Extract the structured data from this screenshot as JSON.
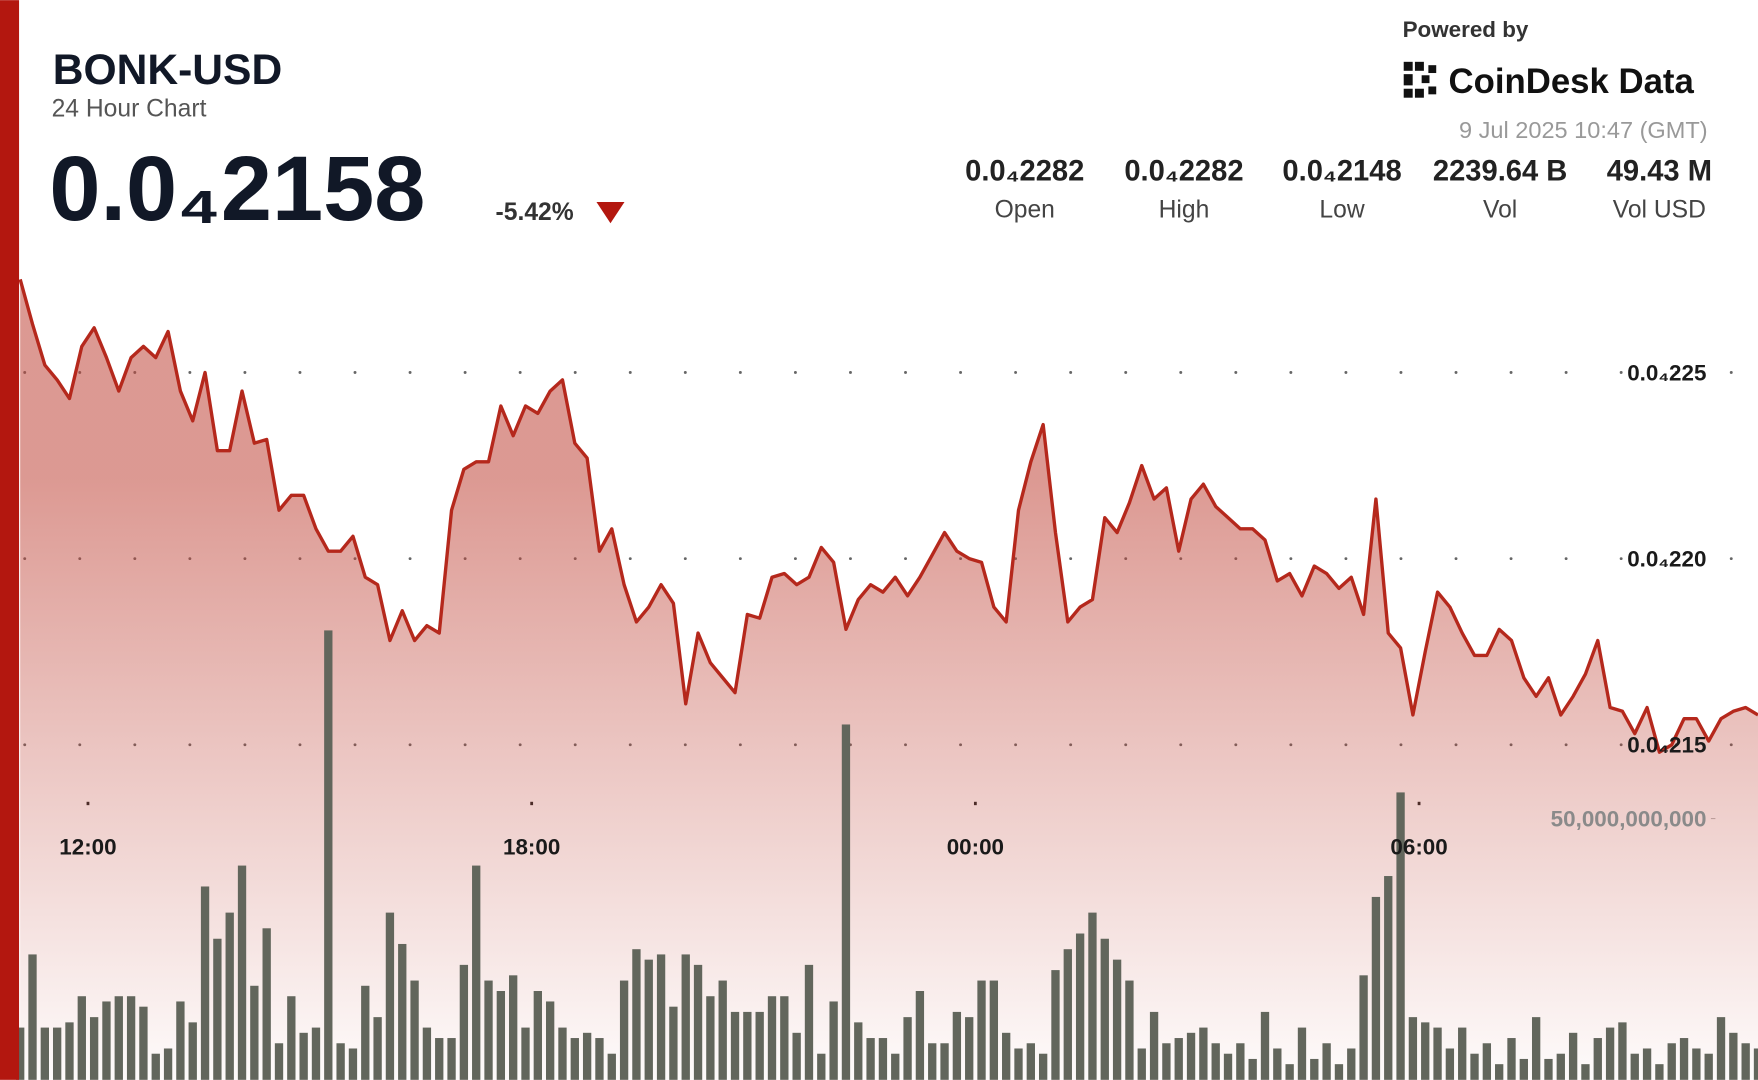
{
  "header": {
    "symbol": "BONK-USD",
    "subtitle": "24 Hour Chart",
    "price": "0.0₄2158",
    "change": "-5.42%",
    "stats": [
      {
        "value": "0.0₄2282",
        "label": "Open"
      },
      {
        "value": "0.0₄2282",
        "label": "High"
      },
      {
        "value": "0.0₄2148",
        "label": "Low"
      },
      {
        "value": "2239.64 B",
        "label": "Vol"
      },
      {
        "value": "49.43 M",
        "label": "Vol USD"
      }
    ],
    "powered_by": "Powered by",
    "brand": "CoinDesk Data",
    "timestamp": "9 Jul 2025 10:47 (GMT)"
  },
  "chart_data": {
    "type": "line",
    "x": [
      665,
      675,
      685,
      695,
      705,
      715,
      725,
      735,
      745,
      755,
      765,
      775,
      785,
      795,
      805,
      815,
      825,
      835,
      845,
      855,
      865,
      875,
      885,
      895,
      905,
      915,
      925,
      935,
      945,
      955,
      965,
      975,
      985,
      995,
      1005,
      1015,
      1025,
      1035,
      1045,
      1055,
      1065,
      1075,
      1085,
      1095,
      1105,
      1115,
      1125,
      1135,
      1145,
      1155,
      1165,
      1175,
      1185,
      1195,
      1205,
      1215,
      1225,
      1235,
      1245,
      1255,
      1265,
      1275,
      1285,
      1295,
      1305,
      1315,
      1325,
      1335,
      1345,
      1355,
      1365,
      1375,
      1385,
      1395,
      1405,
      1415,
      1425,
      1435,
      1445,
      1455,
      1465,
      1475,
      1485,
      1495,
      1505,
      1515,
      1525,
      1535,
      1545,
      1555,
      1565,
      1575,
      1585,
      1595,
      1605,
      1615,
      1625,
      1635,
      1645,
      1655,
      1665,
      1675,
      1685,
      1695,
      1705,
      1715,
      1725,
      1735,
      1745,
      1755,
      1765,
      1775,
      1785,
      1795,
      1805,
      1815,
      1825,
      1835,
      1845,
      1855,
      1865,
      1875,
      1885,
      1895,
      1905,
      1915,
      1925,
      1935,
      1945,
      1955,
      1965,
      1975,
      1985,
      1995,
      2005,
      2015,
      2025,
      2035,
      2045,
      2055,
      2065,
      2075
    ],
    "xlim": [
      665,
      2075
    ],
    "xticks": [
      {
        "value": 720,
        "label": "12:00"
      },
      {
        "value": 1080,
        "label": "18:00"
      },
      {
        "value": 1440,
        "label": "00:00"
      },
      {
        "value": 1800,
        "label": "06:00"
      }
    ],
    "ylim": [
      2.06e-05,
      2.35e-05
    ],
    "yticks": [
      {
        "value": 2.15e-05,
        "label": "0.0₄215"
      },
      {
        "value": 2.2e-05,
        "label": "0.0₄220"
      },
      {
        "value": 2.25e-05,
        "label": "0.0₄225"
      }
    ],
    "y2lim": [
      0,
      206600000000
    ],
    "y2ticks": [
      {
        "value": 50000000000,
        "label": "50,000,000,000"
      }
    ],
    "grid": true,
    "series": [
      {
        "type": "area",
        "color": "#b5281c",
        "values": [
          2.275e-05,
          2.263e-05,
          2.252e-05,
          2.248e-05,
          2.243e-05,
          2.257e-05,
          2.262e-05,
          2.254e-05,
          2.245e-05,
          2.254e-05,
          2.257e-05,
          2.254e-05,
          2.261e-05,
          2.245e-05,
          2.237e-05,
          2.25e-05,
          2.229e-05,
          2.229e-05,
          2.245e-05,
          2.231e-05,
          2.232e-05,
          2.213e-05,
          2.217e-05,
          2.217e-05,
          2.208e-05,
          2.202e-05,
          2.202e-05,
          2.206e-05,
          2.195e-05,
          2.193e-05,
          2.178e-05,
          2.186e-05,
          2.178e-05,
          2.182e-05,
          2.18e-05,
          2.213e-05,
          2.224e-05,
          2.226e-05,
          2.226e-05,
          2.241e-05,
          2.233e-05,
          2.241e-05,
          2.239e-05,
          2.245e-05,
          2.248e-05,
          2.231e-05,
          2.227e-05,
          2.202e-05,
          2.208e-05,
          2.193e-05,
          2.183e-05,
          2.187e-05,
          2.193e-05,
          2.188e-05,
          2.161e-05,
          2.18e-05,
          2.172e-05,
          2.168e-05,
          2.164e-05,
          2.185e-05,
          2.184e-05,
          2.195e-05,
          2.196e-05,
          2.193e-05,
          2.195e-05,
          2.203e-05,
          2.199e-05,
          2.181e-05,
          2.189e-05,
          2.193e-05,
          2.191e-05,
          2.195e-05,
          2.19e-05,
          2.195e-05,
          2.201e-05,
          2.207e-05,
          2.202e-05,
          2.2e-05,
          2.199e-05,
          2.187e-05,
          2.183e-05,
          2.213e-05,
          2.226e-05,
          2.236e-05,
          2.207e-05,
          2.183e-05,
          2.187e-05,
          2.189e-05,
          2.211e-05,
          2.207e-05,
          2.215e-05,
          2.225e-05,
          2.216e-05,
          2.219e-05,
          2.202e-05,
          2.216e-05,
          2.22e-05,
          2.214e-05,
          2.211e-05,
          2.208e-05,
          2.208e-05,
          2.205e-05,
          2.194e-05,
          2.196e-05,
          2.19e-05,
          2.198e-05,
          2.196e-05,
          2.192e-05,
          2.195e-05,
          2.185e-05,
          2.216e-05,
          2.18e-05,
          2.176e-05,
          2.158e-05,
          2.175e-05,
          2.191e-05,
          2.187e-05,
          2.18e-05,
          2.174e-05,
          2.174e-05,
          2.181e-05,
          2.178e-05,
          2.168e-05,
          2.163e-05,
          2.168e-05,
          2.158e-05,
          2.163e-05,
          2.169e-05,
          2.178e-05,
          2.16e-05,
          2.159e-05,
          2.153e-05,
          2.16e-05,
          2.148e-05,
          2.15e-05,
          2.157e-05,
          2.157e-05,
          2.151e-05,
          2.157e-05,
          2.159e-05,
          2.16e-05,
          2.158e-05
        ]
      },
      {
        "type": "bar",
        "axis": "y2",
        "color": "#62665c",
        "values": [
          10000000000,
          24000000000,
          10000000000,
          10000000000,
          11000000000,
          16000000000,
          12000000000,
          15000000000,
          16000000000,
          16000000000,
          14000000000,
          5000000000,
          6000000000,
          15000000000,
          11000000000,
          37000000000,
          27000000000,
          32000000000,
          41000000000,
          18000000000,
          29000000000,
          7000000000,
          16000000000,
          9000000000,
          10000000000,
          86000000000,
          7000000000,
          6000000000,
          18000000000,
          12000000000,
          32000000000,
          26000000000,
          19000000000,
          10000000000,
          8000000000,
          8000000000,
          22000000000,
          41000000000,
          19000000000,
          17000000000,
          20000000000,
          10000000000,
          17000000000,
          15000000000,
          10000000000,
          8000000000,
          9000000000,
          8000000000,
          5000000000,
          19000000000,
          25000000000,
          23000000000,
          24000000000,
          14000000000,
          24000000000,
          22000000000,
          16000000000,
          19000000000,
          13000000000,
          13000000000,
          13000000000,
          16000000000,
          16000000000,
          9000000000,
          22000000000,
          5000000000,
          15000000000,
          68000000000,
          11000000000,
          8000000000,
          8000000000,
          5000000000,
          12000000000,
          17000000000,
          7000000000,
          7000000000,
          13000000000,
          12000000000,
          19000000000,
          19000000000,
          9000000000,
          6000000000,
          7000000000,
          5000000000,
          21000000000,
          25000000000,
          28000000000,
          32000000000,
          27000000000,
          23000000000,
          19000000000,
          6000000000,
          13000000000,
          7000000000,
          8000000000,
          9000000000,
          10000000000,
          7000000000,
          5000000000,
          7000000000,
          4000000000,
          13000000000,
          6000000000,
          3000000000,
          10000000000,
          4000000000,
          7000000000,
          3000000000,
          6000000000,
          20000000000,
          35000000000,
          39000000000,
          55000000000,
          12000000000,
          11000000000,
          10000000000,
          6000000000,
          10000000000,
          5000000000,
          7000000000,
          3000000000,
          8000000000,
          4000000000,
          12000000000,
          4000000000,
          5000000000,
          9000000000,
          3000000000,
          8000000000,
          10000000000,
          11000000000,
          5000000000,
          6000000000,
          3000000000,
          7000000000,
          8000000000,
          6000000000,
          5000000000,
          12000000000,
          9000000000,
          7000000000,
          6000000000
        ]
      }
    ]
  }
}
